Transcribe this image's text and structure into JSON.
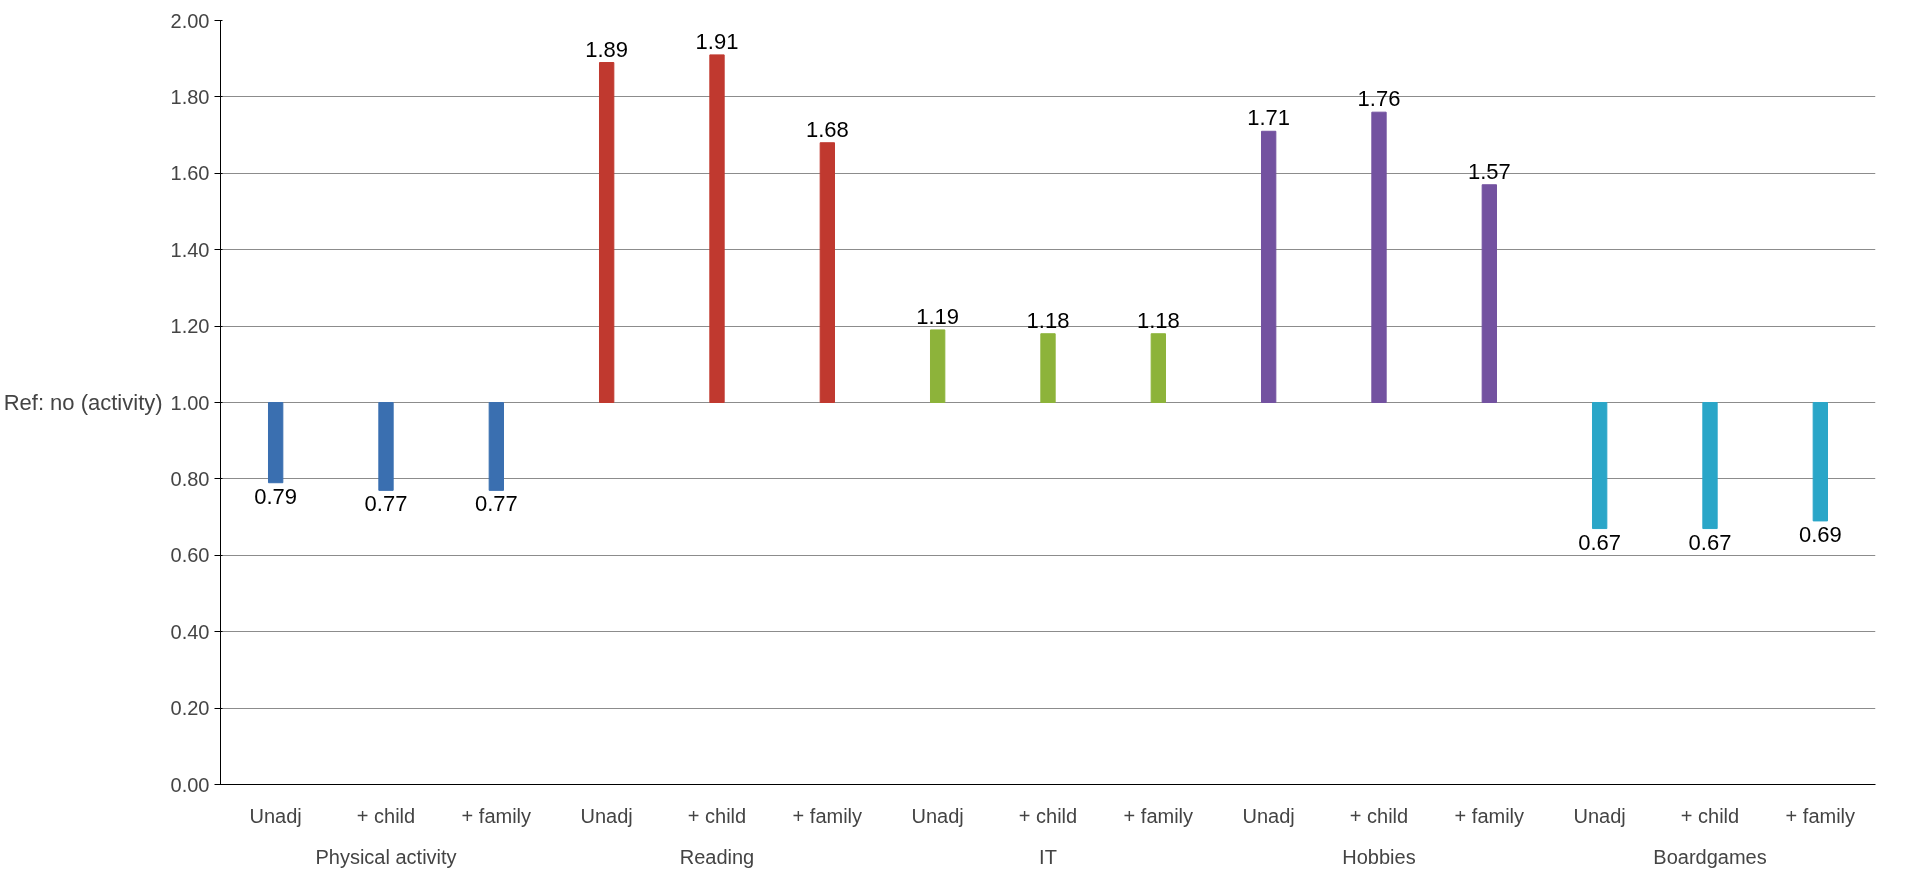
{
  "chart_data": {
    "type": "bar",
    "ylabel": "Ref: no (activity)",
    "categories": [
      "Unadj",
      "+ child",
      "+ family",
      "Unadj",
      "+ child",
      "+ family",
      "Unadj",
      "+ child",
      "+ family",
      "Unadj",
      "+ child",
      "+ family",
      "Unadj",
      "+ child",
      "+ family"
    ],
    "annotations": [
      "Physical activity",
      "Reading",
      "IT",
      "Hobbies",
      "Boardgames"
    ],
    "base": [
      1,
      1,
      1,
      1,
      1,
      1,
      1,
      1,
      1,
      1,
      1,
      1,
      1,
      1,
      1
    ],
    "values": [
      -0.21,
      -0.23,
      -0.23,
      0.89,
      0.91,
      0.68,
      0.19,
      0.18,
      0.18,
      0.71,
      0.76,
      0.57,
      -0.33,
      -0.33,
      -0.31
    ],
    "value_labels": [
      "0.79",
      "0.77",
      "0.77",
      "1.89",
      "1.91",
      "1.68",
      "1.19",
      "1.18",
      "1.18",
      "1.71",
      "1.76",
      "1.57",
      "0.67",
      "0.67",
      "0.69"
    ],
    "colors": [
      "#3a6fb0",
      "#3a6fb0",
      "#3a6fb0",
      "#c0392f",
      "#c0392f",
      "#c0392f",
      "#8db33a",
      "#8db33a",
      "#8db33a",
      "#7352a0",
      "#7352a0",
      "#7352a0",
      "#2aa6c8",
      "#2aa6c8",
      "#2aa6c8"
    ],
    "ylim": [
      0,
      2
    ],
    "yticks": [
      {
        "value": 0,
        "label": "0.00"
      },
      {
        "value": 0.2,
        "label": "0.20"
      },
      {
        "value": 0.4,
        "label": "0.40"
      },
      {
        "value": 0.6,
        "label": "0.60"
      },
      {
        "value": 0.8,
        "label": "0.80"
      },
      {
        "value": 1,
        "label": "1.00"
      },
      {
        "value": 1.2,
        "label": "1.20"
      },
      {
        "value": 1.4,
        "label": "1.40"
      },
      {
        "value": 1.6,
        "label": "1.60"
      },
      {
        "value": 1.8,
        "label": "1.80"
      },
      {
        "value": 2,
        "label": "2.00"
      }
    ],
    "grid": "y"
  }
}
